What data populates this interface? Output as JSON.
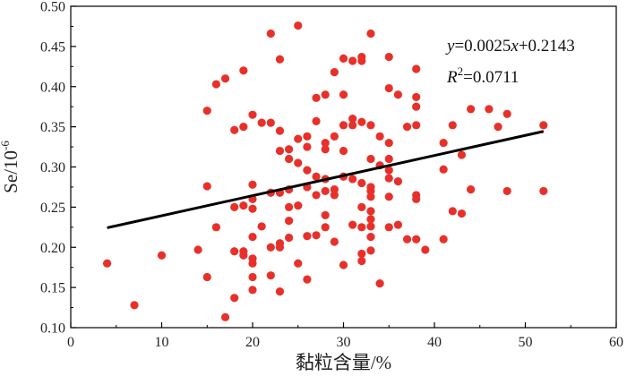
{
  "chart_data": {
    "type": "scatter",
    "xlabel": "黏粒含量/%",
    "ylabel": "Se/10",
    "ylabel_exponent": "-6",
    "xlim": [
      0,
      60
    ],
    "ylim": [
      0.1,
      0.5
    ],
    "xticks": [
      0,
      10,
      20,
      30,
      40,
      50,
      60
    ],
    "yticks": [
      0.1,
      0.15,
      0.2,
      0.25,
      0.3,
      0.35,
      0.4,
      0.45,
      0.5
    ],
    "xtick_labels": [
      "0",
      "10",
      "20",
      "30",
      "40",
      "50",
      "60"
    ],
    "ytick_labels": [
      "0.10",
      "0.15",
      "0.20",
      "0.25",
      "0.30",
      "0.35",
      "0.40",
      "0.45",
      "0.50"
    ],
    "grid": false,
    "colors": {
      "points": "#e8302a",
      "fit_line": "#000000"
    },
    "fit": {
      "slope": 0.0025,
      "intercept": 0.2143,
      "x_range": [
        4,
        52
      ],
      "equation": {
        "y": "y",
        "rest": "=0.0025",
        "x": "x",
        "tail": "+0.2143"
      },
      "r2": {
        "r": "R",
        "sup": "2",
        "value": "=0.0711"
      }
    },
    "series": [
      {
        "points": [
          [
            4,
            0.18
          ],
          [
            7,
            0.128
          ],
          [
            10,
            0.19
          ],
          [
            14,
            0.197
          ],
          [
            15,
            0.37
          ],
          [
            15,
            0.276
          ],
          [
            15,
            0.163
          ],
          [
            16,
            0.403
          ],
          [
            16,
            0.225
          ],
          [
            17,
            0.41
          ],
          [
            17,
            0.113
          ],
          [
            18,
            0.346
          ],
          [
            18,
            0.25
          ],
          [
            18,
            0.195
          ],
          [
            18,
            0.137
          ],
          [
            19,
            0.42
          ],
          [
            19,
            0.35
          ],
          [
            19,
            0.252
          ],
          [
            19,
            0.195
          ],
          [
            19,
            0.19
          ],
          [
            20,
            0.365
          ],
          [
            20,
            0.278
          ],
          [
            20,
            0.26
          ],
          [
            20,
            0.248
          ],
          [
            20,
            0.213
          ],
          [
            20,
            0.186
          ],
          [
            20,
            0.18
          ],
          [
            20,
            0.163
          ],
          [
            20,
            0.147
          ],
          [
            21,
            0.355
          ],
          [
            21,
            0.226
          ],
          [
            22,
            0.466
          ],
          [
            22,
            0.355
          ],
          [
            22,
            0.268
          ],
          [
            22,
            0.2
          ],
          [
            22,
            0.165
          ],
          [
            23,
            0.434
          ],
          [
            23,
            0.345
          ],
          [
            23,
            0.32
          ],
          [
            23,
            0.268
          ],
          [
            23,
            0.205
          ],
          [
            23,
            0.2
          ],
          [
            23,
            0.145
          ],
          [
            24,
            0.322
          ],
          [
            24,
            0.31
          ],
          [
            24,
            0.272
          ],
          [
            24,
            0.25
          ],
          [
            24,
            0.233
          ],
          [
            24,
            0.212
          ],
          [
            25,
            0.476
          ],
          [
            25,
            0.335
          ],
          [
            25,
            0.305
          ],
          [
            25,
            0.252
          ],
          [
            25,
            0.18
          ],
          [
            26,
            0.338
          ],
          [
            26,
            0.325
          ],
          [
            26,
            0.296
          ],
          [
            26,
            0.275
          ],
          [
            26,
            0.214
          ],
          [
            26,
            0.16
          ],
          [
            27,
            0.386
          ],
          [
            27,
            0.357
          ],
          [
            27,
            0.288
          ],
          [
            27,
            0.265
          ],
          [
            27,
            0.215
          ],
          [
            28,
            0.39
          ],
          [
            28,
            0.33
          ],
          [
            28,
            0.322
          ],
          [
            28,
            0.285
          ],
          [
            28,
            0.27
          ],
          [
            28,
            0.24
          ],
          [
            28,
            0.225
          ],
          [
            29,
            0.418
          ],
          [
            29,
            0.338
          ],
          [
            29,
            0.272
          ],
          [
            29,
            0.265
          ],
          [
            29,
            0.207
          ],
          [
            30,
            0.435
          ],
          [
            30,
            0.39
          ],
          [
            30,
            0.352
          ],
          [
            30,
            0.32
          ],
          [
            30,
            0.288
          ],
          [
            30,
            0.178
          ],
          [
            31,
            0.432
          ],
          [
            31,
            0.36
          ],
          [
            31,
            0.352
          ],
          [
            31,
            0.285
          ],
          [
            31,
            0.228
          ],
          [
            32,
            0.437
          ],
          [
            32,
            0.432
          ],
          [
            32,
            0.356
          ],
          [
            32,
            0.28
          ],
          [
            32,
            0.25
          ],
          [
            32,
            0.225
          ],
          [
            32,
            0.192
          ],
          [
            32,
            0.183
          ],
          [
            33,
            0.466
          ],
          [
            33,
            0.352
          ],
          [
            33,
            0.31
          ],
          [
            33,
            0.275
          ],
          [
            33,
            0.27
          ],
          [
            33,
            0.263
          ],
          [
            33,
            0.245
          ],
          [
            33,
            0.235
          ],
          [
            33,
            0.226
          ],
          [
            33,
            0.213
          ],
          [
            33,
            0.196
          ],
          [
            34,
            0.338
          ],
          [
            34,
            0.302
          ],
          [
            34,
            0.155
          ],
          [
            35,
            0.437
          ],
          [
            35,
            0.398
          ],
          [
            35,
            0.33
          ],
          [
            35,
            0.31
          ],
          [
            35,
            0.296
          ],
          [
            35,
            0.286
          ],
          [
            35,
            0.263
          ],
          [
            35,
            0.225
          ],
          [
            36,
            0.39
          ],
          [
            36,
            0.282
          ],
          [
            36,
            0.228
          ],
          [
            37,
            0.35
          ],
          [
            37,
            0.21
          ],
          [
            38,
            0.422
          ],
          [
            38,
            0.387
          ],
          [
            38,
            0.375
          ],
          [
            38,
            0.352
          ],
          [
            38,
            0.265
          ],
          [
            38,
            0.26
          ],
          [
            38,
            0.21
          ],
          [
            39,
            0.197
          ],
          [
            41,
            0.33
          ],
          [
            41,
            0.297
          ],
          [
            41,
            0.21
          ],
          [
            42,
            0.352
          ],
          [
            42,
            0.245
          ],
          [
            43,
            0.315
          ],
          [
            43,
            0.242
          ],
          [
            44,
            0.372
          ],
          [
            44,
            0.272
          ],
          [
            46,
            0.372
          ],
          [
            47,
            0.35
          ],
          [
            48,
            0.366
          ],
          [
            48,
            0.27
          ],
          [
            52,
            0.352
          ],
          [
            52,
            0.27
          ]
        ]
      }
    ]
  }
}
